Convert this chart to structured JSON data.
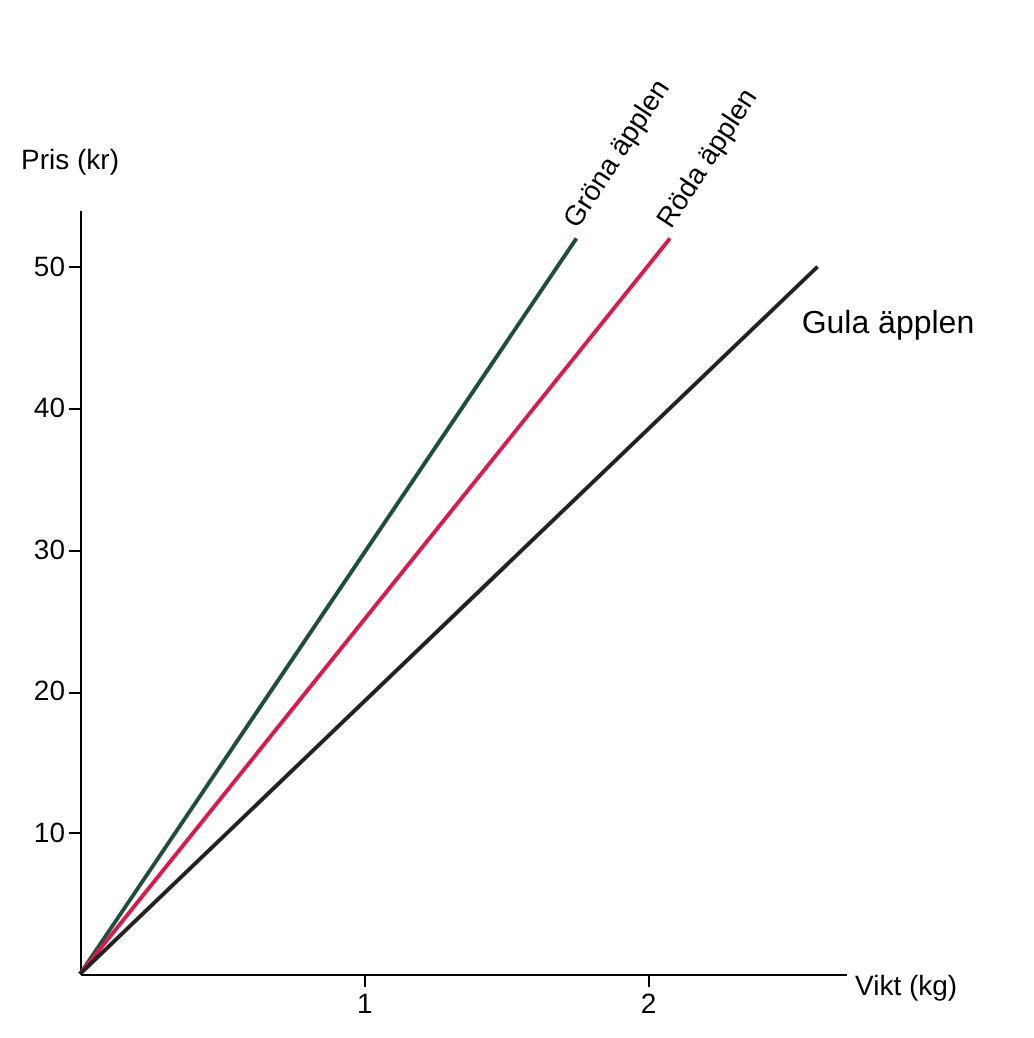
{
  "chart_data": {
    "type": "line",
    "xlabel": "Vikt (kg)",
    "ylabel": "Pris (kr)",
    "xlim": [
      0,
      2.7
    ],
    "ylim": [
      0,
      54
    ],
    "xticks": [
      1,
      2
    ],
    "yticks": [
      10,
      20,
      30,
      40,
      50
    ],
    "grid": false,
    "legend": false,
    "marker": "none",
    "line_style": "solid",
    "series": [
      {
        "name": "Gröna äpplen",
        "color": "#1e4d3a",
        "x": [
          0,
          1.75
        ],
        "values": [
          0,
          52
        ]
      },
      {
        "name": "Röda äpplen",
        "color": "#d81b4a",
        "x": [
          0,
          2.08
        ],
        "values": [
          0,
          52
        ]
      },
      {
        "name": "Gula äpplen",
        "color": "#222222",
        "x": [
          0,
          2.6
        ],
        "values": [
          0,
          50
        ]
      }
    ]
  }
}
